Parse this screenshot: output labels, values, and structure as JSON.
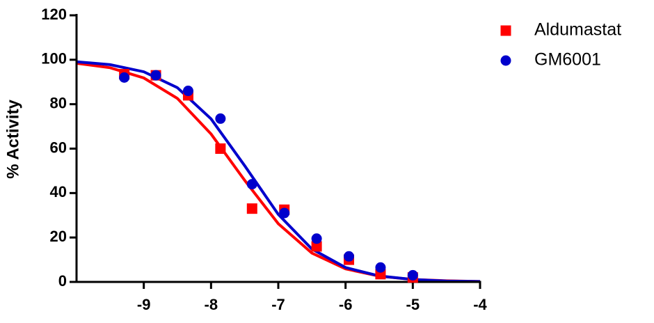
{
  "chart_data": {
    "type": "scatter",
    "ylabel": "% Activity",
    "xlim": [
      -10,
      -4
    ],
    "xticks": [
      -9,
      -8,
      -7,
      -6,
      -5,
      -4
    ],
    "ylim": [
      0,
      120
    ],
    "yticks": [
      0,
      20,
      40,
      60,
      80,
      100,
      120
    ],
    "legend": "top-right",
    "fit_x": [
      -10,
      -9.5,
      -9,
      -8.5,
      -8,
      -7.5,
      -7,
      -6.5,
      -6,
      -5.5,
      -5,
      -4.5,
      -4
    ],
    "series": [
      {
        "name": "Aldumastat",
        "color": "#ff0000",
        "marker": "square",
        "x": [
          -9.29,
          -8.82,
          -8.34,
          -7.86,
          -7.39,
          -6.91,
          -6.43,
          -5.95,
          -5.48,
          -5.0
        ],
        "values": [
          93.5,
          93,
          84,
          60,
          33,
          32.5,
          16,
          10,
          3.5,
          2
        ],
        "fit_values": [
          98.4,
          96.4,
          91.8,
          82.6,
          66.6,
          45.7,
          26.2,
          13.0,
          5.9,
          2.6,
          1.1,
          0.5,
          0.2
        ]
      },
      {
        "name": "GM6001",
        "color": "#0000cc",
        "marker": "circle",
        "x": [
          -9.29,
          -8.82,
          -8.34,
          -7.86,
          -7.39,
          -6.91,
          -6.43,
          -5.95,
          -5.48,
          -5.0
        ],
        "values": [
          92,
          93,
          86,
          73.5,
          44,
          31,
          19.5,
          11.5,
          6.5,
          3
        ],
        "fit_values": [
          99.1,
          97.8,
          94.6,
          87.4,
          73.4,
          52.3,
          30.4,
          14.8,
          6.5,
          2.7,
          1.1,
          0.4,
          0.2
        ]
      }
    ]
  }
}
